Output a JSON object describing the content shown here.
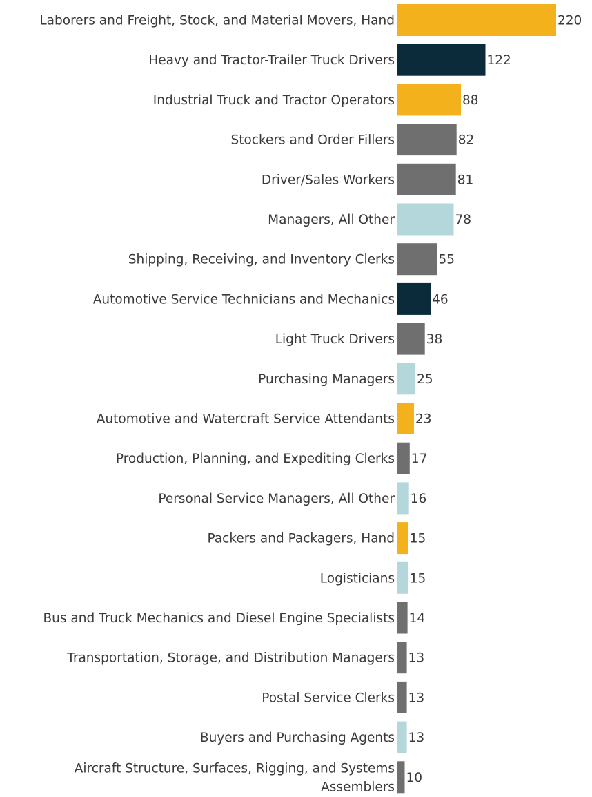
{
  "chart_data": {
    "type": "bar",
    "orientation": "horizontal",
    "title": "",
    "xlabel": "",
    "ylabel": "",
    "xlim": [
      0,
      220
    ],
    "grid": false,
    "legend": "none",
    "categories": [
      "Laborers and Freight, Stock, and Material Movers, Hand",
      "Heavy and Tractor-Trailer Truck Drivers",
      "Industrial Truck and Tractor Operators",
      "Stockers and Order Fillers",
      "Driver/Sales Workers",
      "Managers, All Other",
      "Shipping, Receiving, and Inventory Clerks",
      "Automotive Service Technicians and Mechanics",
      "Light Truck Drivers",
      "Purchasing Managers",
      "Automotive and Watercraft Service Attendants",
      "Production, Planning, and Expediting Clerks",
      "Personal Service Managers, All Other",
      "Packers and Packagers, Hand",
      "Logisticians",
      "Bus and Truck Mechanics and Diesel Engine Specialists",
      "Transportation, Storage, and Distribution Managers",
      "Postal Service Clerks",
      "Buyers and Purchasing Agents",
      "Aircraft Structure, Surfaces, Rigging, and Systems Assemblers"
    ],
    "values": [
      220,
      122,
      88,
      82,
      81,
      78,
      55,
      46,
      38,
      25,
      23,
      17,
      16,
      15,
      15,
      14,
      13,
      13,
      13,
      10
    ],
    "value_labels": [
      "220",
      "122",
      "88",
      "82",
      "81",
      "78",
      "55",
      "46",
      "38",
      "25",
      "23",
      "17",
      "16",
      "15",
      "15",
      "14",
      "13",
      "13",
      "13",
      "10"
    ],
    "bar_colors": [
      "#f3b11b",
      "#0b2a3a",
      "#f3b11b",
      "#6f6f6f",
      "#6f6f6f",
      "#b4d7dc",
      "#6f6f6f",
      "#0b2a3a",
      "#6f6f6f",
      "#b4d7dc",
      "#f3b11b",
      "#6f6f6f",
      "#b4d7dc",
      "#f3b11b",
      "#b4d7dc",
      "#6f6f6f",
      "#6f6f6f",
      "#6f6f6f",
      "#b4d7dc",
      "#6f6f6f"
    ]
  },
  "colors": {
    "label_text": "#3a3a3a",
    "background": "#ffffff"
  }
}
